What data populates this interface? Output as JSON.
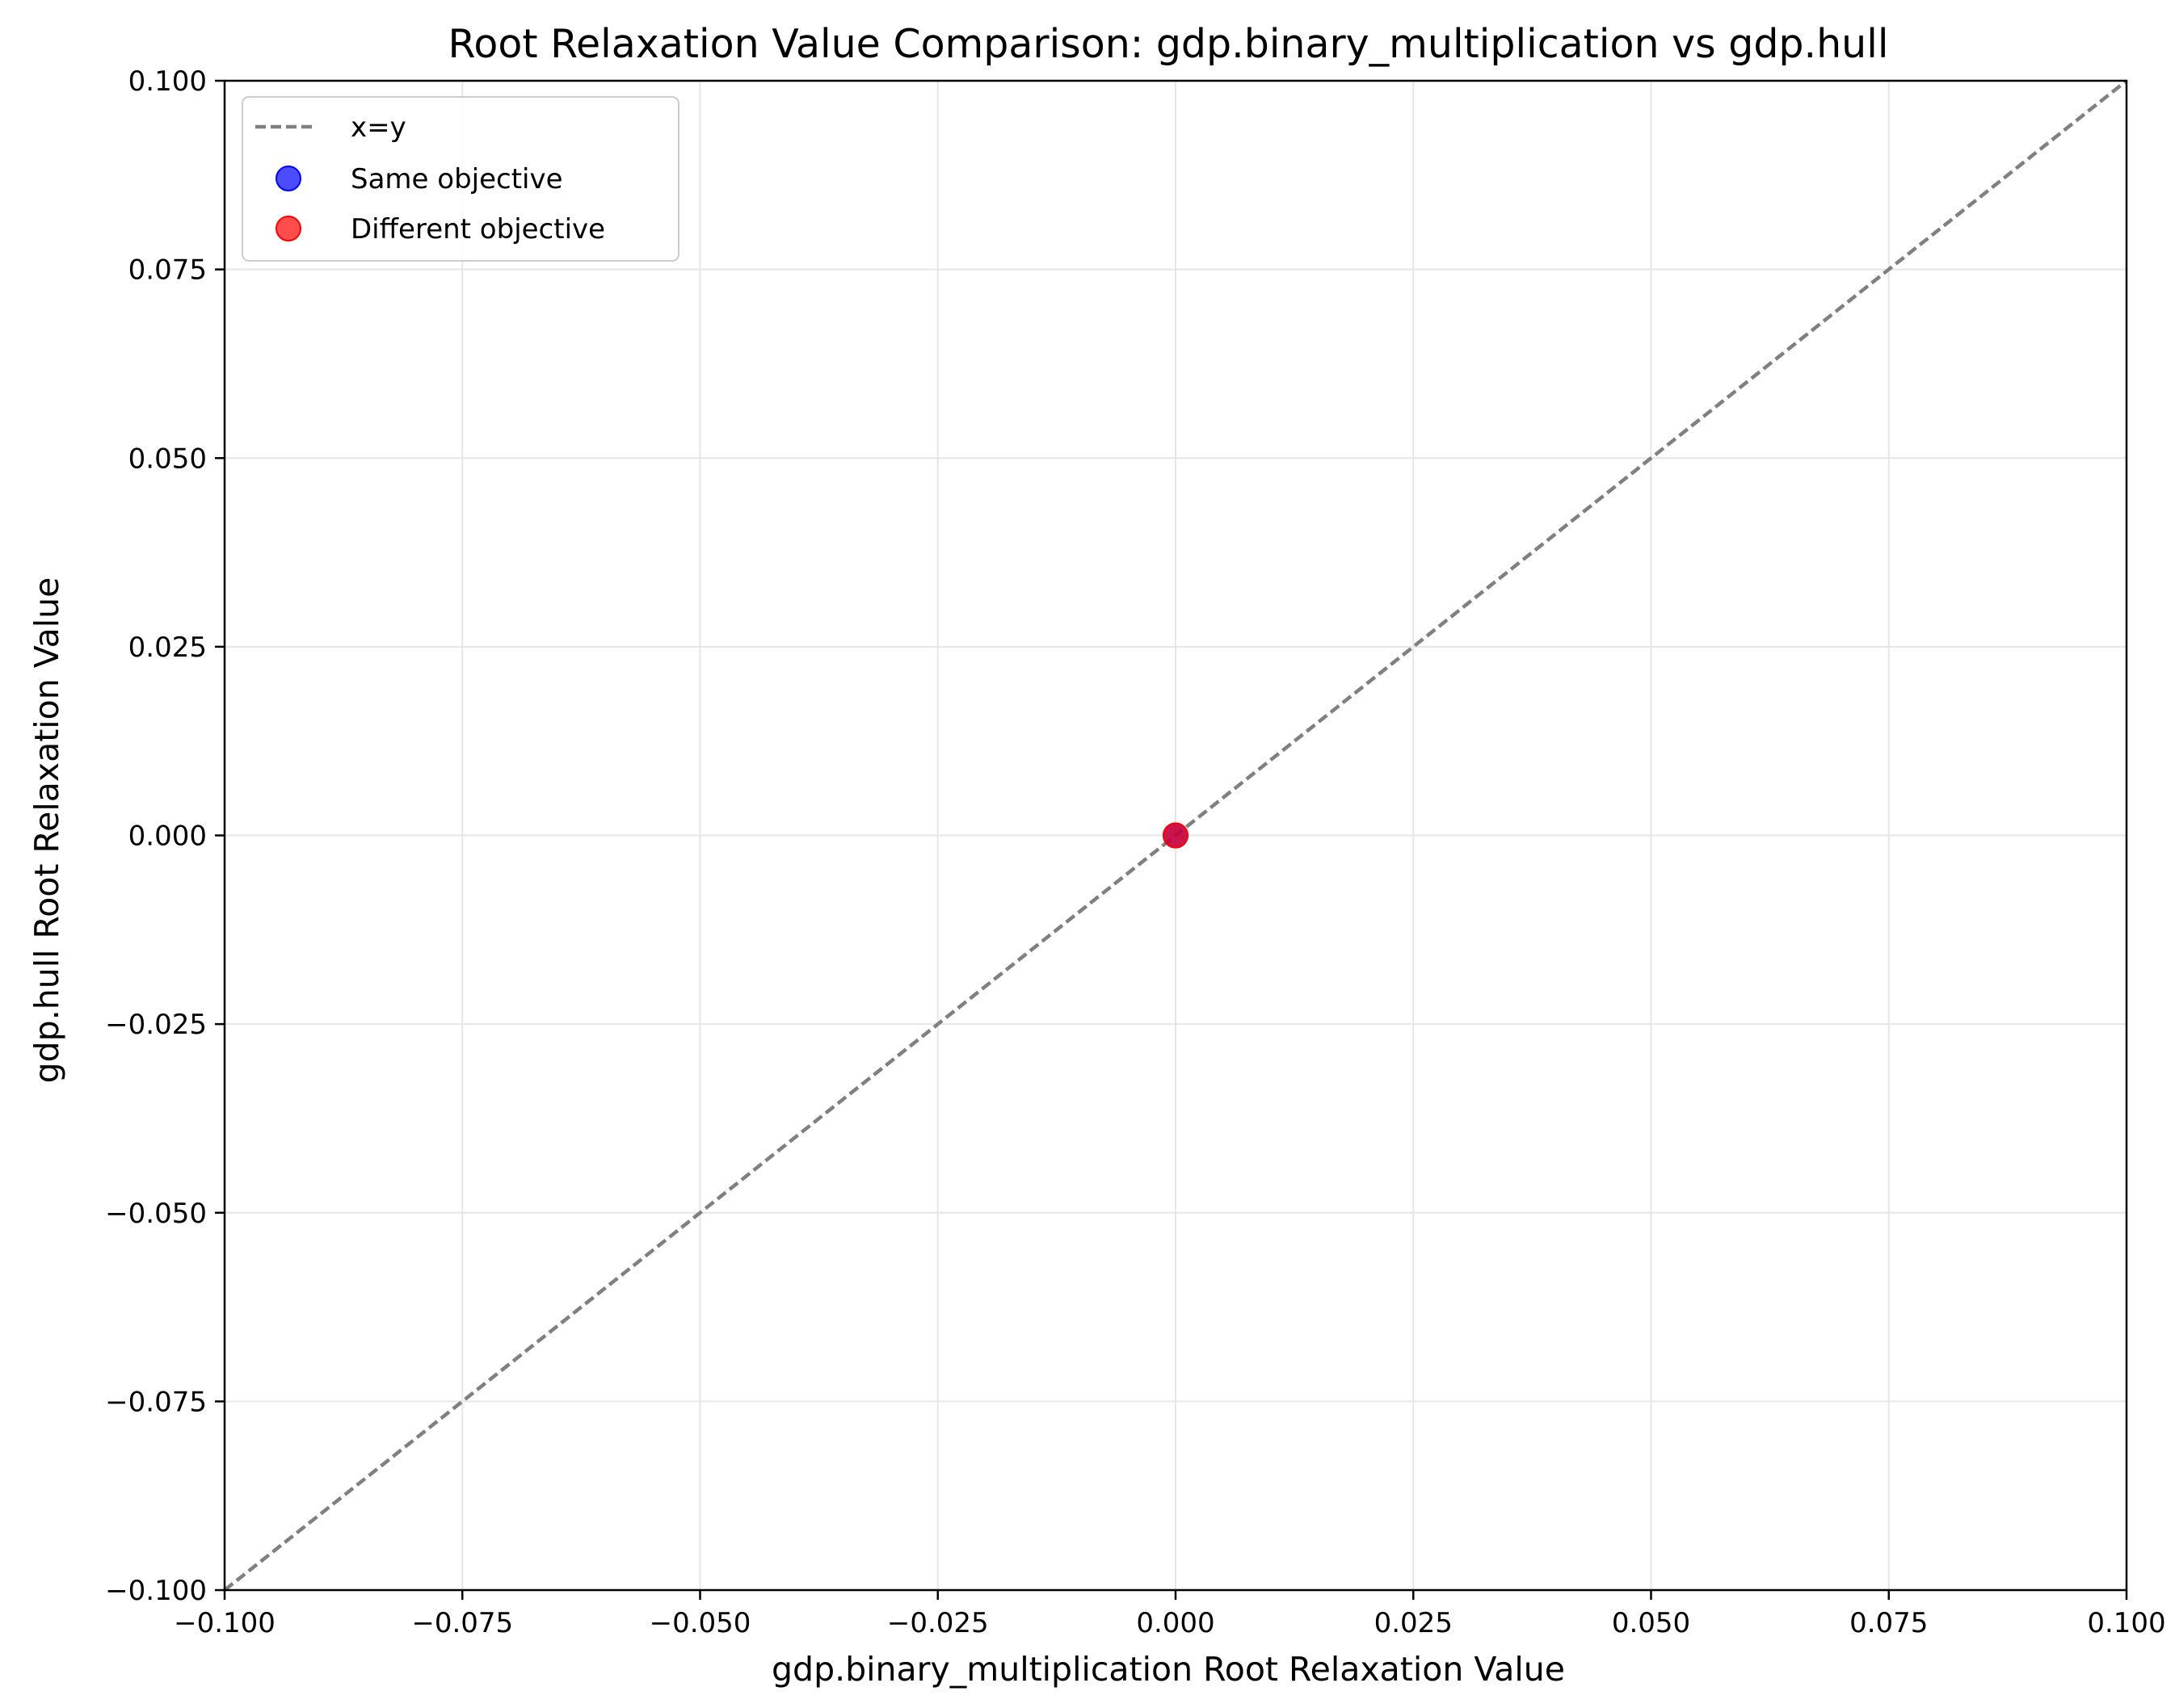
{
  "chart_data": {
    "type": "scatter",
    "title": "Root Relaxation Value Comparison: gdp.binary_multiplication vs gdp.hull",
    "xlabel": "gdp.binary_multiplication Root Relaxation Value",
    "ylabel": "gdp.hull Root Relaxation Value",
    "xlim": [
      -0.1,
      0.1
    ],
    "ylim": [
      -0.1,
      0.1
    ],
    "x_ticks": [
      -0.1,
      -0.075,
      -0.05,
      -0.025,
      0.0,
      0.025,
      0.05,
      0.075,
      0.1
    ],
    "y_ticks": [
      -0.1,
      -0.075,
      -0.05,
      -0.025,
      0.0,
      0.025,
      0.05,
      0.075,
      0.1
    ],
    "x_tick_labels": [
      "−0.100",
      "−0.075",
      "−0.050",
      "−0.025",
      "0.000",
      "0.025",
      "0.050",
      "0.075",
      "0.100"
    ],
    "y_tick_labels": [
      "−0.100",
      "−0.075",
      "−0.050",
      "−0.025",
      "0.000",
      "0.025",
      "0.050",
      "0.075",
      "0.100"
    ],
    "grid": true,
    "legend_position": "top-left",
    "reference_line": {
      "name": "x=y",
      "style": "dashed",
      "color": "#808080",
      "x": [
        -0.1,
        0.1
      ],
      "y": [
        -0.1,
        0.1
      ]
    },
    "series": [
      {
        "name": "Same objective",
        "color": "#0000ff",
        "points": [
          {
            "x": 0.0,
            "y": 0.0
          }
        ]
      },
      {
        "name": "Different objective",
        "color": "#ff0000",
        "points": [
          {
            "x": 0.0,
            "y": 0.0
          }
        ]
      }
    ],
    "legend_entries": [
      "x=y",
      "Same objective",
      "Different objective"
    ]
  }
}
